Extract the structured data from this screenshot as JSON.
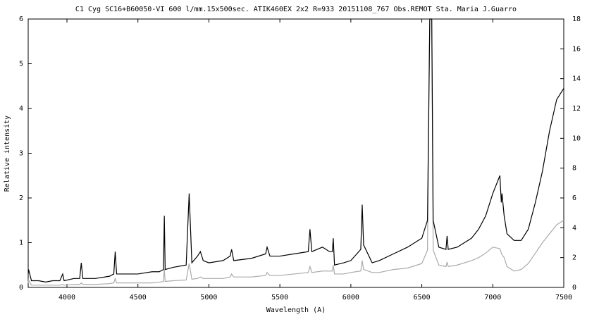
{
  "chart_data": {
    "type": "line",
    "title": "C1 Cyg  SC16+B60050-VI  600 l/mm.15x500sec. ATIK460EX  2x2 R=933 20151108_767 Obs.REMOT Sta. Maria  J.Guarro",
    "x_label": "Wavelength (A)",
    "y_label": "Relative intensity",
    "xlim": [
      3727,
      7500
    ],
    "xticks": [
      4000,
      4500,
      5000,
      5500,
      6000,
      6500,
      7000,
      7500
    ],
    "ylim": [
      0,
      6
    ],
    "yticks": [
      0,
      1,
      2,
      3,
      4,
      5,
      6
    ],
    "y2lim": [
      0,
      18
    ],
    "y2ticks": [
      0,
      2,
      4,
      6,
      8,
      10,
      12,
      14,
      16,
      18
    ],
    "x": [
      3727,
      3730,
      3750,
      3800,
      3850,
      3900,
      3950,
      3970,
      3980,
      4050,
      4090,
      4101,
      4112,
      4200,
      4300,
      4330,
      4340,
      4350,
      4400,
      4500,
      4600,
      4650,
      4680,
      4686,
      4692,
      4750,
      4840,
      4861,
      4880,
      4920,
      4940,
      4960,
      5000,
      5100,
      5150,
      5160,
      5175,
      5300,
      5400,
      5410,
      5430,
      5500,
      5600,
      5700,
      5712,
      5725,
      5800,
      5850,
      5870,
      5876,
      5885,
      5950,
      6000,
      6070,
      6080,
      6090,
      6150,
      6200,
      6300,
      6400,
      6500,
      6540,
      6556,
      6570,
      6580,
      6620,
      6670,
      6678,
      6686,
      6750,
      6850,
      6900,
      6950,
      7000,
      7050,
      7060,
      7065,
      7080,
      7100,
      7150,
      7200,
      7250,
      7300,
      7350,
      7400,
      7450,
      7500
    ],
    "series": [
      {
        "color": "#000000",
        "values": [
          0.3,
          0.4,
          0.15,
          0.15,
          0.12,
          0.15,
          0.15,
          0.3,
          0.15,
          0.2,
          0.2,
          0.55,
          0.2,
          0.2,
          0.25,
          0.3,
          0.8,
          0.3,
          0.3,
          0.3,
          0.35,
          0.35,
          0.4,
          1.6,
          0.4,
          0.45,
          0.5,
          2.1,
          0.55,
          0.7,
          0.8,
          0.6,
          0.55,
          0.6,
          0.7,
          0.85,
          0.6,
          0.65,
          0.75,
          0.9,
          0.7,
          0.7,
          0.75,
          0.8,
          1.3,
          0.8,
          0.9,
          0.8,
          0.8,
          1.1,
          0.5,
          0.55,
          0.6,
          0.85,
          1.85,
          0.95,
          0.55,
          0.6,
          0.75,
          0.9,
          1.1,
          1.5,
          6,
          6,
          1.5,
          0.9,
          0.85,
          1.15,
          0.85,
          0.9,
          1.1,
          1.3,
          1.6,
          2.1,
          2.5,
          1.9,
          2.1,
          1.6,
          1.2,
          1.05,
          1.05,
          1.3,
          1.9,
          2.6,
          3.5,
          4.2,
          4.45
        ]
      },
      {
        "color": "#aaaaaa",
        "axis": "y2",
        "values": [
          0.3,
          0.5,
          0.15,
          0.15,
          0.15,
          0.15,
          0.15,
          0.2,
          0.15,
          0.2,
          0.2,
          0.3,
          0.2,
          0.2,
          0.25,
          0.3,
          0.6,
          0.3,
          0.3,
          0.3,
          0.3,
          0.35,
          0.4,
          1.2,
          0.4,
          0.45,
          0.5,
          1.6,
          0.55,
          0.6,
          0.7,
          0.6,
          0.6,
          0.6,
          0.7,
          0.9,
          0.7,
          0.7,
          0.8,
          1.0,
          0.8,
          0.8,
          0.9,
          1.0,
          1.4,
          1.0,
          1.1,
          1.1,
          1.1,
          1.5,
          0.9,
          0.9,
          1.0,
          1.1,
          1.8,
          1.2,
          1.0,
          1.0,
          1.2,
          1.3,
          1.6,
          2.5,
          18,
          18,
          2.5,
          1.5,
          1.4,
          1.7,
          1.4,
          1.5,
          1.8,
          2.0,
          2.3,
          2.7,
          2.6,
          2.3,
          2.2,
          2.0,
          1.4,
          1.1,
          1.2,
          1.6,
          2.3,
          3.0,
          3.6,
          4.2,
          4.5
        ]
      }
    ]
  }
}
